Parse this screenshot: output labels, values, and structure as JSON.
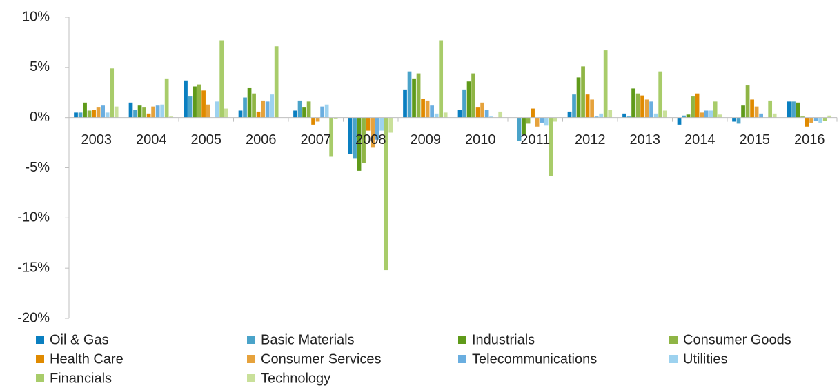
{
  "chart_data": {
    "type": "bar",
    "categories": [
      "2003",
      "2004",
      "2005",
      "2006",
      "2007",
      "2008",
      "2009",
      "2010",
      "2011",
      "2012",
      "2013",
      "2014",
      "2015",
      "2016"
    ],
    "series": [
      {
        "name": "Oil & Gas",
        "color": "#0a7fc0",
        "values": [
          0.5,
          1.5,
          3.7,
          0.7,
          0.7,
          -3.6,
          2.8,
          0.8,
          0.0,
          0.6,
          0.4,
          -0.7,
          -0.4,
          1.6
        ]
      },
      {
        "name": "Basic Materials",
        "color": "#4aa3c9",
        "values": [
          0.5,
          0.8,
          2.1,
          2.0,
          1.7,
          -4.1,
          4.6,
          2.8,
          -2.3,
          2.3,
          0.1,
          0.2,
          -0.6,
          1.6
        ]
      },
      {
        "name": "Industrials",
        "color": "#5f9a1a",
        "values": [
          1.5,
          1.2,
          3.1,
          3.0,
          1.0,
          -5.3,
          3.9,
          3.6,
          -1.7,
          4.0,
          2.9,
          0.3,
          1.2,
          1.5
        ]
      },
      {
        "name": "Consumer Goods",
        "color": "#8fb545",
        "values": [
          0.7,
          1.0,
          3.3,
          2.4,
          1.6,
          -4.5,
          4.4,
          4.4,
          -0.6,
          5.1,
          2.4,
          2.1,
          3.2,
          0.1
        ]
      },
      {
        "name": "Health Care",
        "color": "#e08a00",
        "values": [
          0.8,
          0.4,
          2.7,
          0.6,
          -0.7,
          -1.3,
          1.9,
          1.0,
          0.9,
          2.3,
          2.2,
          2.4,
          1.8,
          -0.9
        ]
      },
      {
        "name": "Consumer Services",
        "color": "#e6a23c",
        "values": [
          1.0,
          1.1,
          1.3,
          1.7,
          -0.4,
          -3.0,
          1.7,
          1.5,
          -0.9,
          1.8,
          1.8,
          0.5,
          1.1,
          -0.5
        ]
      },
      {
        "name": "Telecommunications",
        "color": "#6aaee0",
        "values": [
          1.2,
          1.2,
          0.0,
          1.6,
          1.1,
          -2.2,
          1.2,
          0.8,
          -0.5,
          0.1,
          1.6,
          0.7,
          0.4,
          -0.3
        ]
      },
      {
        "name": "Utilities",
        "color": "#9dd2ef",
        "values": [
          0.5,
          1.3,
          1.6,
          2.3,
          1.3,
          -1.3,
          0.4,
          0.1,
          -0.8,
          0.4,
          0.4,
          0.7,
          0.0,
          -0.5
        ]
      },
      {
        "name": "Financials",
        "color": "#a8cc6a",
        "values": [
          4.9,
          3.9,
          7.7,
          7.1,
          -3.9,
          -15.2,
          7.7,
          0.0,
          -5.8,
          6.7,
          4.6,
          1.6,
          1.7,
          -0.3
        ]
      },
      {
        "name": "Technology",
        "color": "#c9e09a",
        "values": [
          1.1,
          0.1,
          0.9,
          0.0,
          -0.1,
          -1.5,
          0.5,
          0.6,
          -0.4,
          0.8,
          0.7,
          0.3,
          0.4,
          0.2
        ]
      }
    ],
    "ylim": [
      -20,
      10
    ],
    "yticks": [
      {
        "value": -20,
        "label": "-20%"
      },
      {
        "value": -15,
        "label": "-15%"
      },
      {
        "value": -10,
        "label": "-10%"
      },
      {
        "value": -5,
        "label": "-5%"
      },
      {
        "value": 0,
        "label": "0%"
      },
      {
        "value": 5,
        "label": "5%"
      },
      {
        "value": 10,
        "label": "10%"
      }
    ],
    "legend": "bottom"
  }
}
